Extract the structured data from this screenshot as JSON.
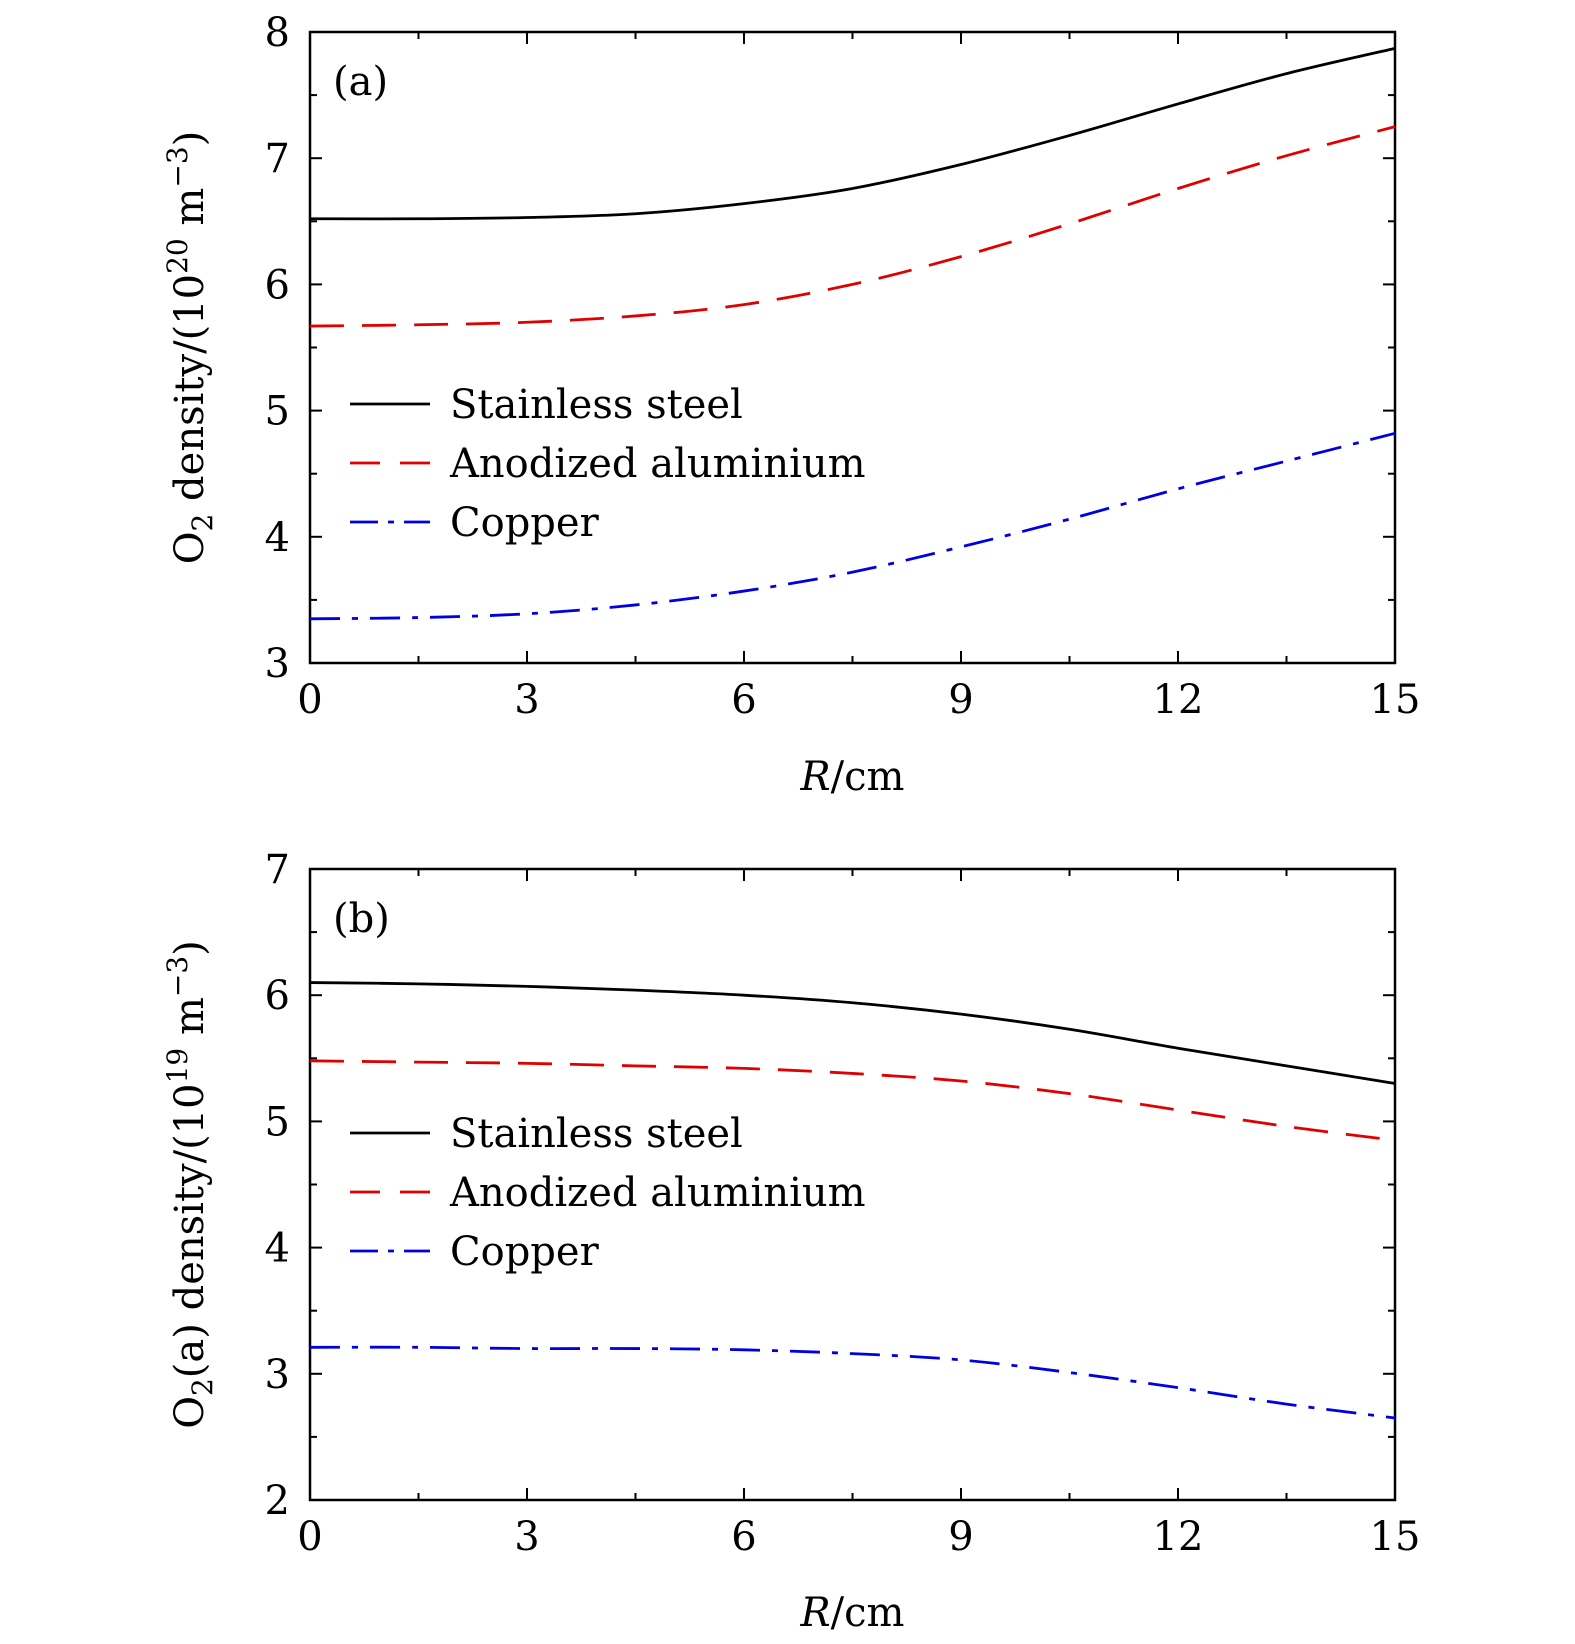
{
  "chart_data": [
    {
      "type": "line",
      "panel_label": "(a)",
      "xlabel": {
        "var": "R",
        "unit": "/cm"
      },
      "ylabel": {
        "prefix": "O",
        "sub": "2",
        "rest": " density/(10",
        "sup": "20",
        "unit": " m",
        "unit_sup": "−3",
        "close": ")"
      },
      "xlim": [
        0,
        15
      ],
      "ylim": [
        3,
        8
      ],
      "xticks": [
        0,
        3,
        6,
        9,
        12,
        15
      ],
      "yticks": [
        3,
        4,
        5,
        6,
        7,
        8
      ],
      "legend_position": "middle-left",
      "x": [
        0,
        1.5,
        3,
        4.5,
        6,
        7.5,
        9,
        10.5,
        12,
        13.5,
        15
      ],
      "series": [
        {
          "name": "Stainless steel",
          "color": "#000000",
          "dash": "solid",
          "values": [
            6.52,
            6.52,
            6.53,
            6.56,
            6.64,
            6.76,
            6.95,
            7.18,
            7.43,
            7.67,
            7.87
          ]
        },
        {
          "name": "Anodized aluminium",
          "color": "#e00000",
          "dash": "dashed",
          "values": [
            5.67,
            5.68,
            5.7,
            5.75,
            5.84,
            6.0,
            6.22,
            6.48,
            6.76,
            7.02,
            7.25
          ]
        },
        {
          "name": "Copper",
          "color": "#0000e0",
          "dash": "dashdot",
          "values": [
            3.35,
            3.36,
            3.39,
            3.46,
            3.57,
            3.72,
            3.92,
            4.14,
            4.38,
            4.6,
            4.82
          ]
        }
      ]
    },
    {
      "type": "line",
      "panel_label": "(b)",
      "xlabel": {
        "var": "R",
        "unit": "/cm"
      },
      "ylabel": {
        "prefix": "O",
        "sub": "2",
        "rest": "(a) density/(10",
        "sup": "19",
        "unit": " m",
        "unit_sup": "−3",
        "close": ")"
      },
      "xlim": [
        0,
        15
      ],
      "ylim": [
        2,
        7
      ],
      "xticks": [
        0,
        3,
        6,
        9,
        12,
        15
      ],
      "yticks": [
        2,
        3,
        4,
        5,
        6,
        7
      ],
      "legend_position": "middle-left",
      "x": [
        0,
        1.5,
        3,
        4.5,
        6,
        7.5,
        9,
        10.5,
        12,
        13.5,
        15
      ],
      "series": [
        {
          "name": "Stainless steel",
          "color": "#000000",
          "dash": "solid",
          "values": [
            6.1,
            6.09,
            6.07,
            6.04,
            6.0,
            5.94,
            5.85,
            5.73,
            5.58,
            5.44,
            5.3
          ]
        },
        {
          "name": "Anodized aluminium",
          "color": "#e00000",
          "dash": "dashed",
          "values": [
            5.48,
            5.47,
            5.46,
            5.44,
            5.42,
            5.38,
            5.32,
            5.22,
            5.09,
            4.96,
            4.85
          ]
        },
        {
          "name": "Copper",
          "color": "#0000e0",
          "dash": "dashdot",
          "values": [
            3.21,
            3.21,
            3.2,
            3.2,
            3.19,
            3.16,
            3.11,
            3.01,
            2.89,
            2.76,
            2.65
          ]
        }
      ]
    }
  ]
}
